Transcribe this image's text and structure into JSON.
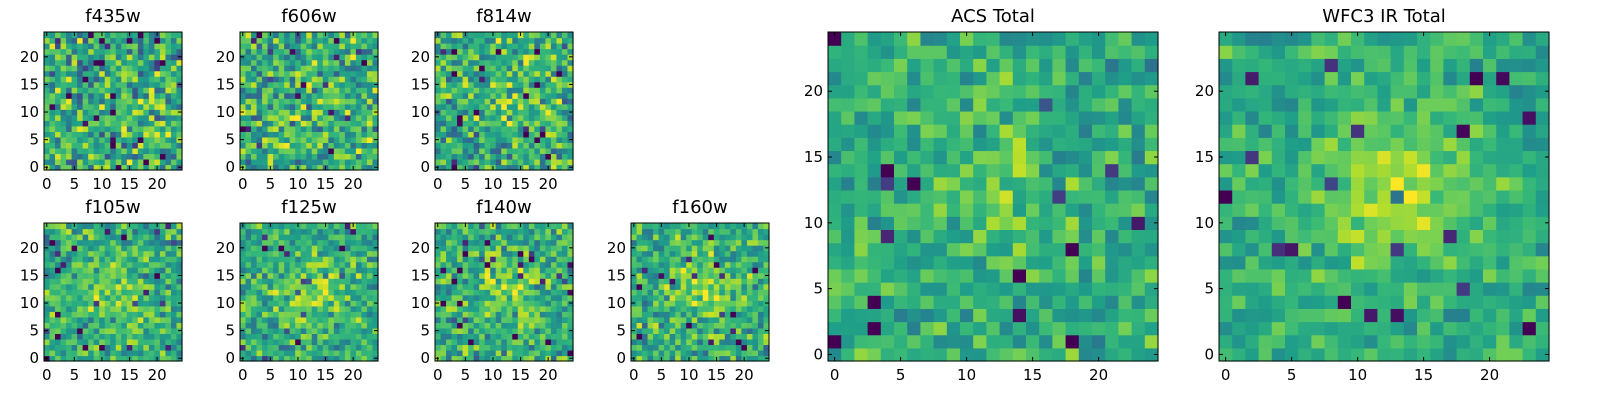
{
  "chart_data": [
    {
      "type": "heatmap",
      "title": "f435w",
      "xticks": [
        "0",
        "5",
        "10",
        "15",
        "20"
      ],
      "yticks": [
        "0",
        "5",
        "10",
        "15",
        "20"
      ],
      "xlim": [
        0,
        25
      ],
      "ylim": [
        0,
        25
      ],
      "grid": false,
      "cmap": "viridis",
      "peak": 0.0,
      "noise": 0.95
    },
    {
      "type": "heatmap",
      "title": "f606w",
      "xticks": [
        "0",
        "5",
        "10",
        "15",
        "20"
      ],
      "yticks": [
        "0",
        "5",
        "10",
        "15",
        "20"
      ],
      "xlim": [
        0,
        25
      ],
      "ylim": [
        0,
        25
      ],
      "grid": false,
      "cmap": "viridis",
      "peak": 0.15,
      "noise": 0.9
    },
    {
      "type": "heatmap",
      "title": "f814w",
      "xticks": [
        "0",
        "5",
        "10",
        "15",
        "20"
      ],
      "yticks": [
        "0",
        "5",
        "10",
        "15",
        "20"
      ],
      "xlim": [
        0,
        25
      ],
      "ylim": [
        0,
        25
      ],
      "grid": false,
      "cmap": "viridis",
      "peak": 0.3,
      "noise": 0.85
    },
    {
      "type": "heatmap",
      "title": "f105w",
      "xticks": [
        "0",
        "5",
        "10",
        "15",
        "20"
      ],
      "yticks": [
        "0",
        "5",
        "10",
        "15",
        "20"
      ],
      "xlim": [
        0,
        25
      ],
      "ylim": [
        0,
        25
      ],
      "grid": false,
      "cmap": "viridis",
      "peak": 0.6,
      "noise": 0.7
    },
    {
      "type": "heatmap",
      "title": "f125w",
      "xticks": [
        "0",
        "5",
        "10",
        "15",
        "20"
      ],
      "yticks": [
        "0",
        "5",
        "10",
        "15",
        "20"
      ],
      "xlim": [
        0,
        25
      ],
      "ylim": [
        0,
        25
      ],
      "grid": false,
      "cmap": "viridis",
      "peak": 0.55,
      "noise": 0.7
    },
    {
      "type": "heatmap",
      "title": "f140w",
      "xticks": [
        "0",
        "5",
        "10",
        "15",
        "20"
      ],
      "yticks": [
        "0",
        "5",
        "10",
        "15",
        "20"
      ],
      "xlim": [
        0,
        25
      ],
      "ylim": [
        0,
        25
      ],
      "grid": false,
      "cmap": "viridis",
      "peak": 0.5,
      "noise": 0.75
    },
    {
      "type": "heatmap",
      "title": "f160w",
      "xticks": [
        "0",
        "5",
        "10",
        "15",
        "20"
      ],
      "yticks": [
        "0",
        "5",
        "10",
        "15",
        "20"
      ],
      "xlim": [
        0,
        25
      ],
      "ylim": [
        0,
        25
      ],
      "grid": false,
      "cmap": "viridis",
      "peak": 0.55,
      "noise": 0.7
    },
    {
      "type": "heatmap",
      "title": "ACS Total",
      "xticks": [
        "0",
        "5",
        "10",
        "15",
        "20"
      ],
      "yticks": [
        "0",
        "5",
        "10",
        "15",
        "20"
      ],
      "xlim": [
        0,
        25
      ],
      "ylim": [
        0,
        25
      ],
      "grid": false,
      "cmap": "viridis",
      "peak": 0.25,
      "noise": 0.55
    },
    {
      "type": "heatmap",
      "title": "WFC3 IR Total",
      "xticks": [
        "0",
        "5",
        "10",
        "15",
        "20"
      ],
      "yticks": [
        "0",
        "5",
        "10",
        "15",
        "20"
      ],
      "xlim": [
        0,
        25
      ],
      "ylim": [
        0,
        25
      ],
      "grid": false,
      "cmap": "viridis",
      "peak": 0.7,
      "noise": 0.45
    }
  ]
}
